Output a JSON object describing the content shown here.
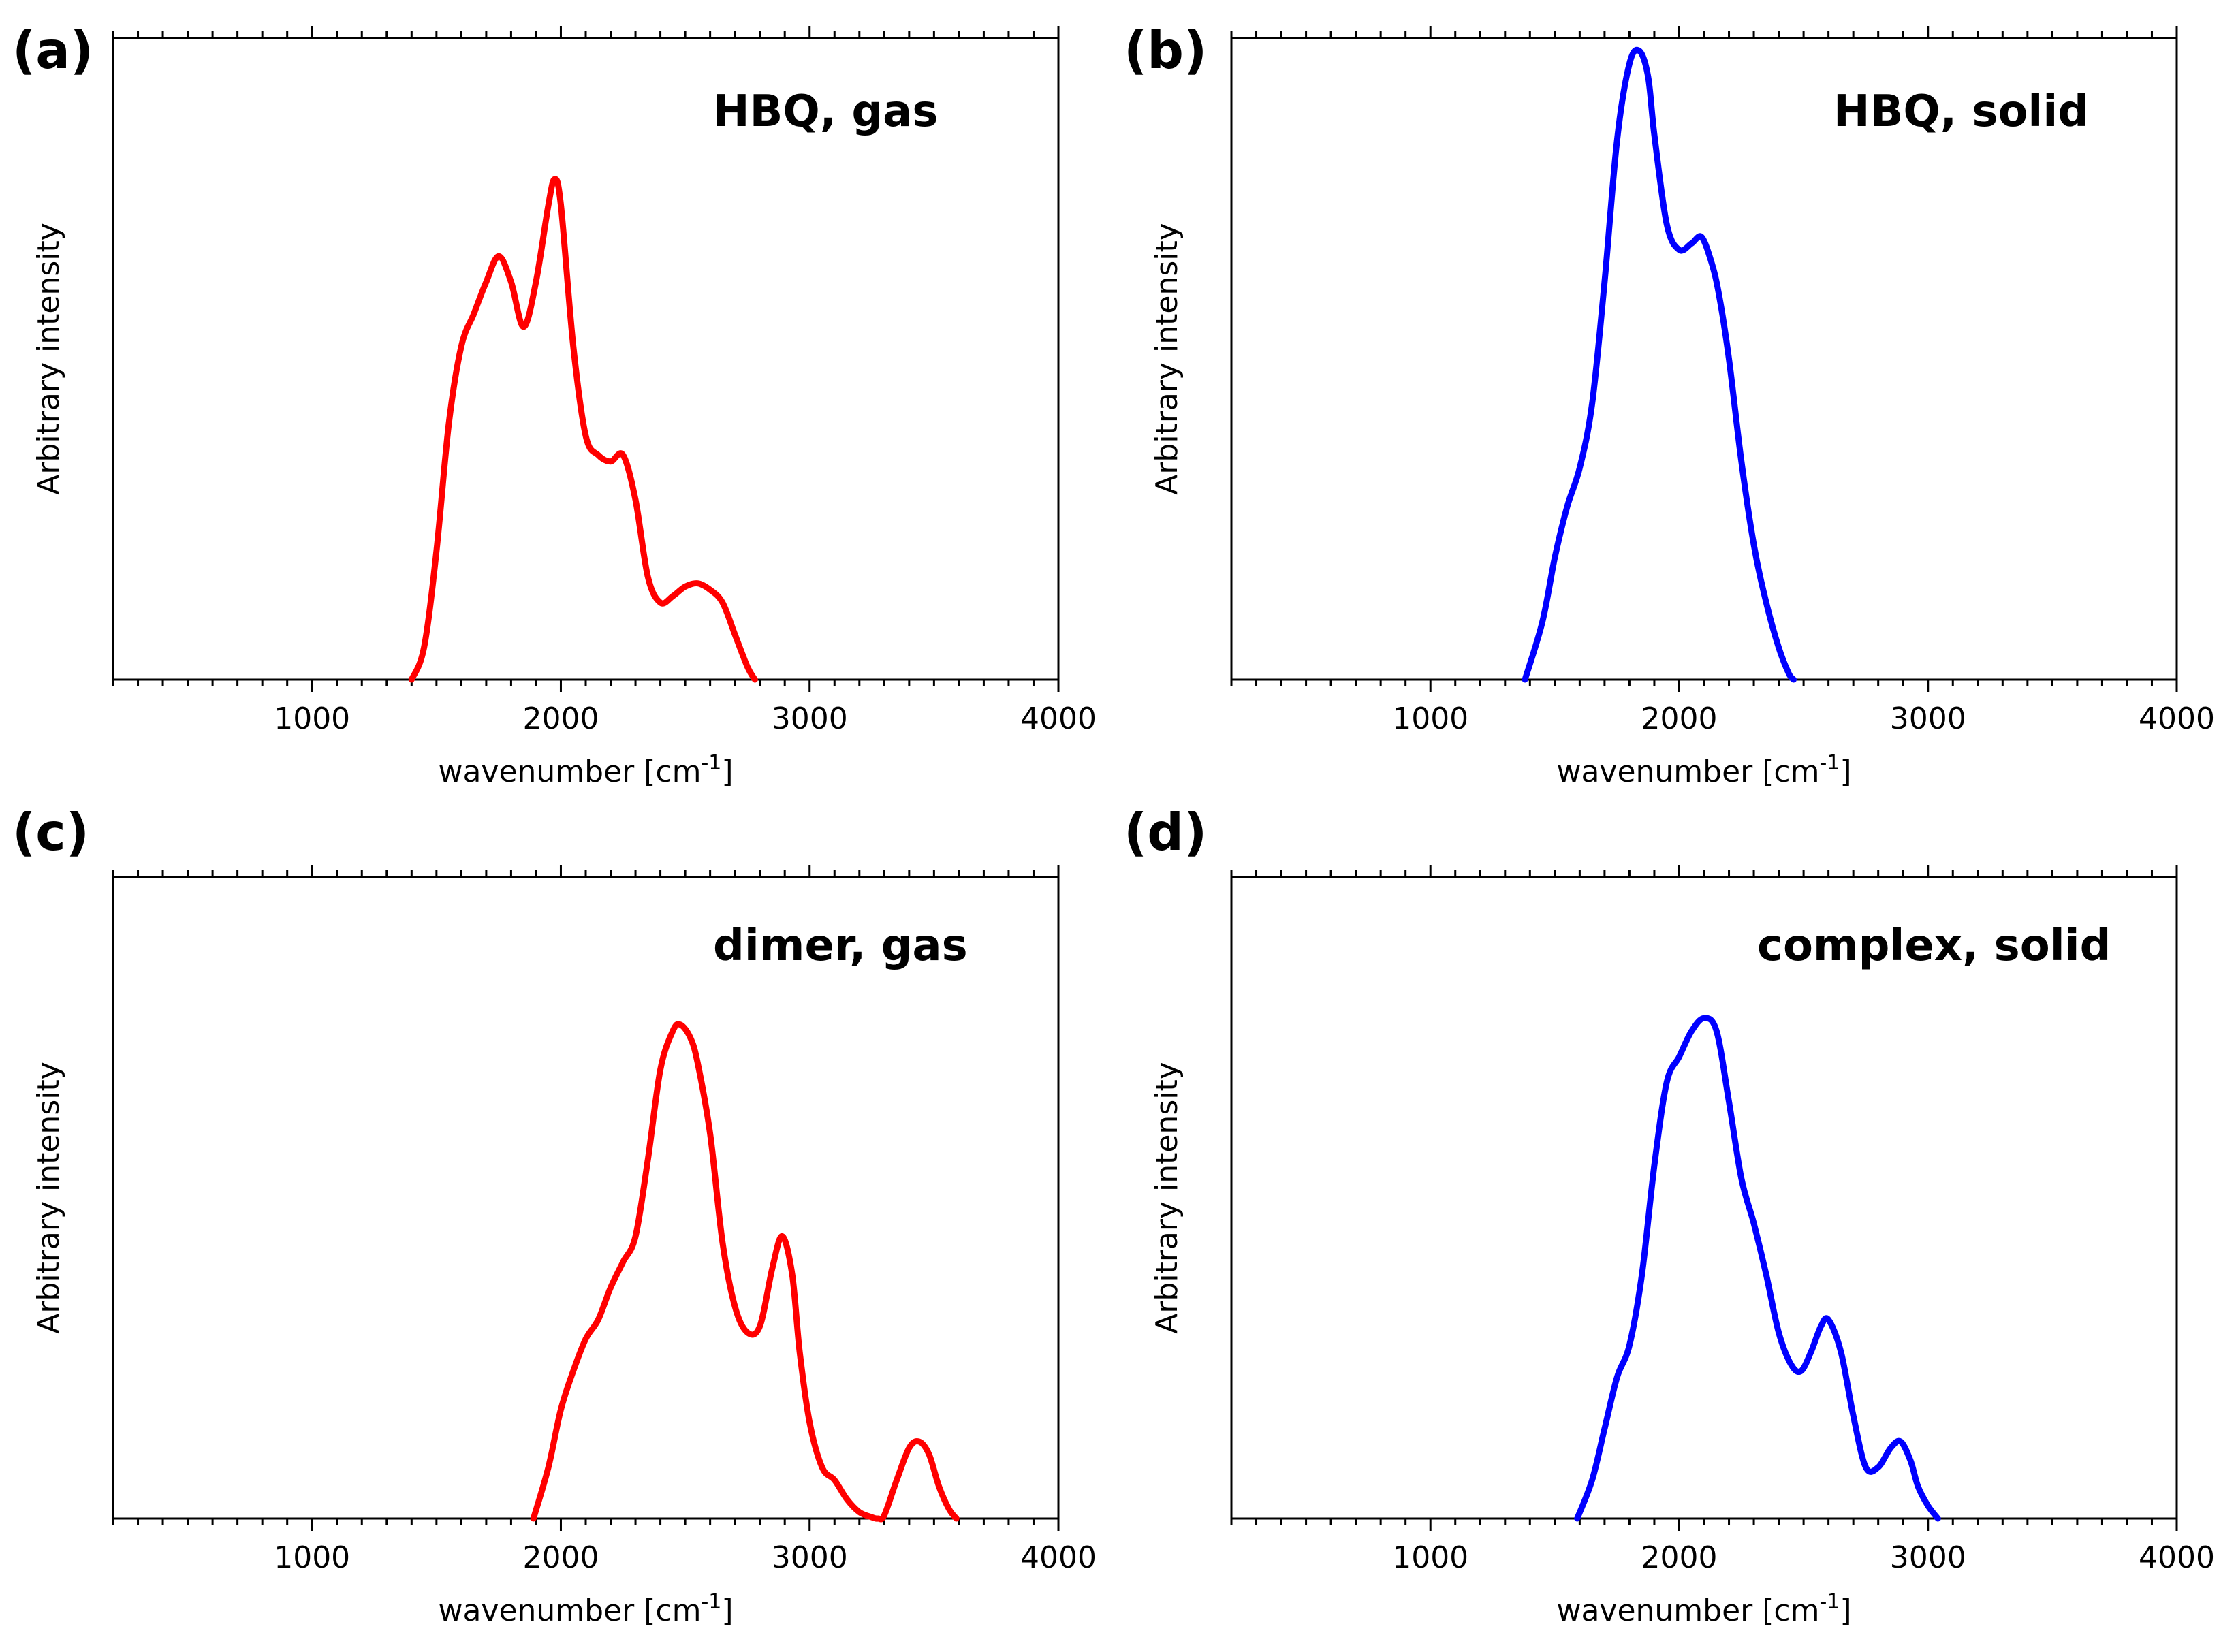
{
  "colors": {
    "gas": "#ff0000",
    "solid": "#0000ff",
    "axes": "#000000"
  },
  "chart_data": [
    {
      "type": "line",
      "panel": "(a)",
      "title": "HBQ, gas",
      "xlabel": "wavenumber [cm",
      "xlabel_sup": "-1",
      "xlabel_end": "]",
      "ylabel": "Arbitrary intensity",
      "xlim": [
        200,
        4000
      ],
      "ylim": [
        0,
        1.0
      ],
      "xticks": [
        1000,
        2000,
        3000,
        4000
      ],
      "tick_labels": [
        "1000",
        "2000",
        "3000",
        "4000"
      ],
      "color": "#ff0000",
      "series": [
        {
          "name": "HBQ, gas",
          "x": [
            1400,
            1450,
            1500,
            1550,
            1600,
            1650,
            1700,
            1750,
            1800,
            1850,
            1900,
            1950,
            1975,
            2000,
            2050,
            2100,
            2150,
            2200,
            2250,
            2300,
            2350,
            2400,
            2450,
            2500,
            2550,
            2600,
            2650,
            2700,
            2750,
            2780
          ],
          "y": [
            0,
            0.05,
            0.2,
            0.4,
            0.52,
            0.57,
            0.62,
            0.66,
            0.62,
            0.55,
            0.62,
            0.74,
            0.78,
            0.74,
            0.52,
            0.38,
            0.35,
            0.34,
            0.35,
            0.28,
            0.16,
            0.12,
            0.13,
            0.145,
            0.15,
            0.14,
            0.12,
            0.07,
            0.02,
            0
          ]
        }
      ]
    },
    {
      "type": "line",
      "panel": "(b)",
      "title": "HBQ, solid",
      "xlabel": "wavenumber [cm",
      "xlabel_sup": "-1",
      "xlabel_end": "]",
      "ylabel": "Arbitrary intensity",
      "xlim": [
        200,
        4000
      ],
      "ylim": [
        0,
        1.0
      ],
      "xticks": [
        1000,
        2000,
        3000,
        4000
      ],
      "tick_labels": [
        "1000",
        "2000",
        "3000",
        "4000"
      ],
      "color": "#0000ff",
      "series": [
        {
          "name": "HBQ, solid",
          "x": [
            1380,
            1450,
            1500,
            1550,
            1600,
            1650,
            1700,
            1750,
            1800,
            1840,
            1875,
            1900,
            1950,
            2000,
            2050,
            2090,
            2130,
            2160,
            2200,
            2250,
            2300,
            2350,
            2400,
            2440,
            2460
          ],
          "y": [
            0,
            0.09,
            0.19,
            0.27,
            0.33,
            0.43,
            0.62,
            0.84,
            0.96,
            0.98,
            0.94,
            0.85,
            0.71,
            0.67,
            0.68,
            0.69,
            0.65,
            0.6,
            0.5,
            0.34,
            0.21,
            0.12,
            0.05,
            0.01,
            0
          ]
        }
      ]
    },
    {
      "type": "line",
      "panel": "(c)",
      "title": "dimer, gas",
      "xlabel": "wavenumber [cm",
      "xlabel_sup": "-1",
      "xlabel_end": "]",
      "ylabel": "Arbitrary intensity",
      "xlim": [
        200,
        4000
      ],
      "ylim": [
        0,
        1.0
      ],
      "xticks": [
        1000,
        2000,
        3000,
        4000
      ],
      "tick_labels": [
        "1000",
        "2000",
        "3000",
        "4000"
      ],
      "color": "#ff0000",
      "series": [
        {
          "name": "dimer, gas",
          "x": [
            1890,
            1950,
            2000,
            2050,
            2100,
            2150,
            2200,
            2250,
            2300,
            2350,
            2400,
            2450,
            2480,
            2520,
            2550,
            2600,
            2650,
            2700,
            2750,
            2800,
            2850,
            2890,
            2930,
            2960,
            3000,
            3050,
            3100,
            3150,
            3200,
            3250,
            3275,
            3300,
            3350,
            3400,
            3440,
            3480,
            3520,
            3560,
            3590
          ],
          "y": [
            0,
            0.08,
            0.17,
            0.23,
            0.28,
            0.31,
            0.36,
            0.4,
            0.44,
            0.56,
            0.7,
            0.76,
            0.77,
            0.75,
            0.71,
            0.6,
            0.43,
            0.33,
            0.29,
            0.3,
            0.39,
            0.44,
            0.38,
            0.26,
            0.15,
            0.08,
            0.06,
            0.03,
            0.01,
            0.002,
            0,
            0.005,
            0.06,
            0.11,
            0.12,
            0.1,
            0.05,
            0.015,
            0
          ]
        }
      ]
    },
    {
      "type": "line",
      "panel": "(d)",
      "title": "complex, solid",
      "xlabel": "wavenumber [cm",
      "xlabel_sup": "-1",
      "xlabel_end": "]",
      "ylabel": "Arbitrary intensity",
      "xlim": [
        200,
        4000
      ],
      "ylim": [
        0,
        1.0
      ],
      "xticks": [
        1000,
        2000,
        3000,
        4000
      ],
      "tick_labels": [
        "1000",
        "2000",
        "3000",
        "4000"
      ],
      "color": "#0000ff",
      "series": [
        {
          "name": "complex, solid",
          "x": [
            1590,
            1650,
            1700,
            1750,
            1800,
            1850,
            1900,
            1950,
            2000,
            2050,
            2100,
            2150,
            2200,
            2250,
            2300,
            2350,
            2400,
            2450,
            2490,
            2530,
            2570,
            2600,
            2650,
            2700,
            2750,
            2800,
            2850,
            2890,
            2930,
            2960,
            3000,
            3040
          ],
          "y": [
            0,
            0.06,
            0.14,
            0.22,
            0.27,
            0.38,
            0.55,
            0.68,
            0.72,
            0.76,
            0.78,
            0.76,
            0.65,
            0.53,
            0.46,
            0.38,
            0.29,
            0.24,
            0.23,
            0.26,
            0.3,
            0.31,
            0.26,
            0.16,
            0.08,
            0.08,
            0.11,
            0.12,
            0.09,
            0.05,
            0.02,
            0
          ]
        }
      ]
    }
  ]
}
